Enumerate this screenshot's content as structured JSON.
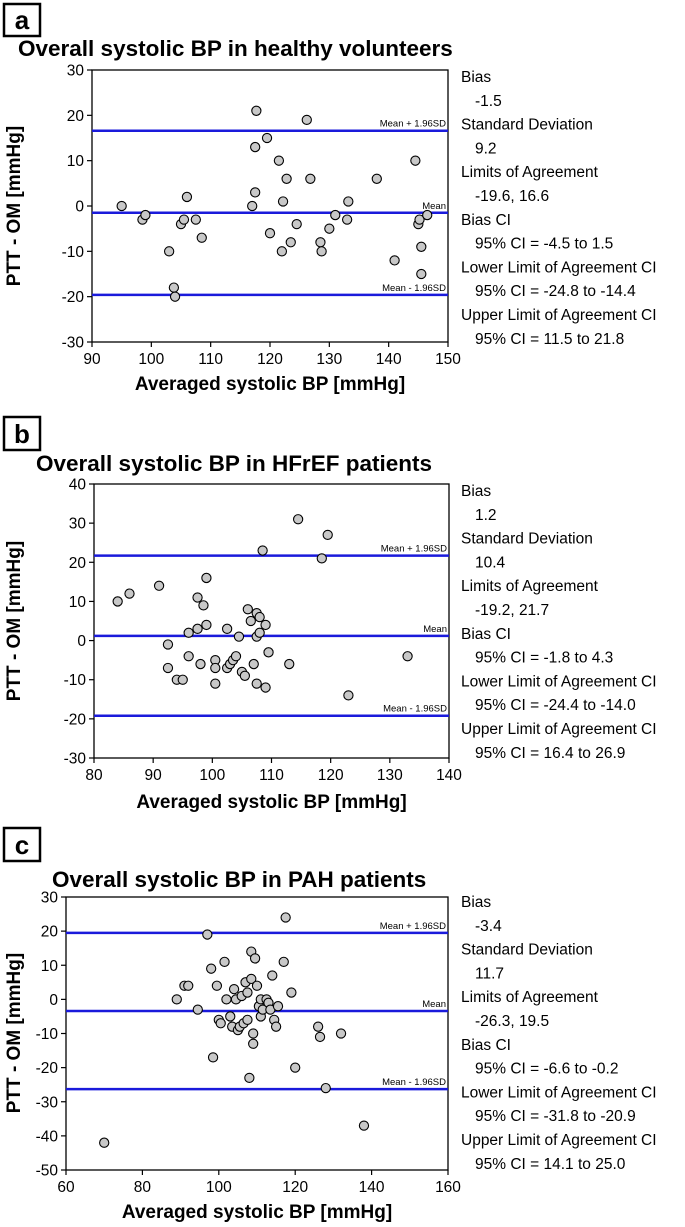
{
  "colors": {
    "mean_line": "#1a1adb",
    "point_fill": "#c8c8c8",
    "point_stroke": "#000000"
  },
  "chart_data": [
    {
      "type": "scatter",
      "panel_label": "a",
      "title": "Overall systolic BP in healthy volunteers",
      "xlabel": "Averaged systolic BP [mmHg]",
      "ylabel": "PTT - OM [mmHg]",
      "xlim": [
        90,
        150
      ],
      "ylim": [
        -30,
        30
      ],
      "xticks": [
        90,
        100,
        110,
        120,
        130,
        140,
        150
      ],
      "yticks": [
        -30,
        -20,
        -10,
        0,
        10,
        20,
        30
      ],
      "grid": false,
      "hlines": [
        {
          "name": "Mean + 1.96SD",
          "value": 16.6
        },
        {
          "name": "Mean",
          "value": -1.5
        },
        {
          "name": "Mean - 1.96SD",
          "value": -19.6
        }
      ],
      "points": [
        [
          95,
          0
        ],
        [
          98.5,
          -3
        ],
        [
          99,
          -2
        ],
        [
          103,
          -10
        ],
        [
          103.8,
          -18
        ],
        [
          104,
          -20
        ],
        [
          105,
          -4
        ],
        [
          105.5,
          -3
        ],
        [
          106,
          2
        ],
        [
          107.5,
          -3
        ],
        [
          108.5,
          -7
        ],
        [
          117,
          0
        ],
        [
          117.5,
          13
        ],
        [
          117.5,
          3
        ],
        [
          117.7,
          21
        ],
        [
          119.5,
          15
        ],
        [
          120,
          -6
        ],
        [
          121.5,
          10
        ],
        [
          122,
          -10
        ],
        [
          122.2,
          1
        ],
        [
          122.8,
          6
        ],
        [
          123.5,
          -8
        ],
        [
          124.5,
          -4
        ],
        [
          126.2,
          19
        ],
        [
          126.8,
          6
        ],
        [
          128.5,
          -8
        ],
        [
          128.7,
          -10
        ],
        [
          130,
          -5
        ],
        [
          131,
          -2
        ],
        [
          133,
          -3
        ],
        [
          133.2,
          1
        ],
        [
          138,
          6
        ],
        [
          141,
          -12
        ],
        [
          144.5,
          10
        ],
        [
          145,
          -4
        ],
        [
          145.2,
          -3
        ],
        [
          145.5,
          -9
        ],
        [
          145.5,
          -15
        ],
        [
          146.5,
          -2
        ]
      ],
      "stats": [
        {
          "label": "Bias",
          "value": "-1.5"
        },
        {
          "label": "Standard Deviation",
          "value": "9.2"
        },
        {
          "label": "Limits of Agreement",
          "value": "-19.6, 16.6"
        },
        {
          "label": "Bias CI",
          "value": "95% CI = -4.5 to 1.5"
        },
        {
          "label": "Lower Limit of Agreement CI",
          "value": "95% CI = -24.8 to -14.4"
        },
        {
          "label": "Upper Limit of Agreement CI",
          "value": "95% CI = 11.5 to 21.8"
        }
      ]
    },
    {
      "type": "scatter",
      "panel_label": "b",
      "title": "Overall systolic BP in HFrEF patients",
      "xlabel": "Averaged systolic BP [mmHg]",
      "ylabel": "PTT - OM [mmHg]",
      "xlim": [
        80,
        140
      ],
      "ylim": [
        -30,
        40
      ],
      "xticks": [
        80,
        90,
        100,
        110,
        120,
        130,
        140
      ],
      "yticks": [
        -30,
        -20,
        -10,
        0,
        10,
        20,
        30,
        40
      ],
      "grid": false,
      "hlines": [
        {
          "name": "Mean + 1.96SD",
          "value": 21.7
        },
        {
          "name": "Mean",
          "value": 1.2
        },
        {
          "name": "Mean - 1.96SD",
          "value": -19.2
        }
      ],
      "points": [
        [
          84,
          10
        ],
        [
          86,
          12
        ],
        [
          91,
          14
        ],
        [
          92.5,
          -1
        ],
        [
          92.5,
          -7
        ],
        [
          94,
          -10
        ],
        [
          95,
          -10
        ],
        [
          96,
          2
        ],
        [
          96,
          -4
        ],
        [
          97.5,
          3
        ],
        [
          97.5,
          11
        ],
        [
          98,
          -6
        ],
        [
          98.5,
          9
        ],
        [
          99,
          16
        ],
        [
          99,
          4
        ],
        [
          100.5,
          -5
        ],
        [
          100.5,
          -7
        ],
        [
          100.5,
          -11
        ],
        [
          102.5,
          3
        ],
        [
          102.5,
          -7
        ],
        [
          103,
          -6
        ],
        [
          103.5,
          -5
        ],
        [
          104,
          -4
        ],
        [
          104.5,
          1
        ],
        [
          105,
          -8
        ],
        [
          105.5,
          -9
        ],
        [
          106,
          8
        ],
        [
          106.5,
          5
        ],
        [
          107,
          -6
        ],
        [
          107.5,
          7
        ],
        [
          107.5,
          1
        ],
        [
          107.5,
          -11
        ],
        [
          108,
          2
        ],
        [
          108,
          6
        ],
        [
          108.5,
          23
        ],
        [
          109,
          -12
        ],
        [
          109,
          4
        ],
        [
          109.5,
          -3
        ],
        [
          113,
          -6
        ],
        [
          114.5,
          31
        ],
        [
          118.5,
          21
        ],
        [
          119.5,
          27
        ],
        [
          123,
          -14
        ],
        [
          133,
          -4
        ]
      ],
      "stats": [
        {
          "label": "Bias",
          "value": "1.2"
        },
        {
          "label": "Standard Deviation",
          "value": "10.4"
        },
        {
          "label": "Limits of Agreement",
          "value": "-19.2, 21.7"
        },
        {
          "label": "Bias CI",
          "value": "95% CI = -1.8 to 4.3"
        },
        {
          "label": "Lower Limit of Agreement CI",
          "value": "95% CI = -24.4 to -14.0"
        },
        {
          "label": "Upper Limit of Agreement CI",
          "value": "95% CI = 16.4 to 26.9"
        }
      ]
    },
    {
      "type": "scatter",
      "panel_label": "c",
      "title": "Overall systolic BP in PAH patients",
      "xlabel": "Averaged systolic BP [mmHg]",
      "ylabel": "PTT - OM [mmHg]",
      "xlim": [
        60,
        160
      ],
      "ylim": [
        -50,
        30
      ],
      "xticks": [
        60,
        80,
        100,
        120,
        140,
        160
      ],
      "yticks": [
        -50,
        -40,
        -30,
        -20,
        -10,
        0,
        10,
        20,
        30
      ],
      "grid": false,
      "hlines": [
        {
          "name": "Mean + 1.96SD",
          "value": 19.5
        },
        {
          "name": "Mean",
          "value": -3.4
        },
        {
          "name": "Mean - 1.96SD",
          "value": -26.3
        }
      ],
      "points": [
        [
          70,
          -42
        ],
        [
          89,
          0
        ],
        [
          91,
          4
        ],
        [
          92,
          4
        ],
        [
          94.5,
          -3
        ],
        [
          97,
          19
        ],
        [
          98,
          9
        ],
        [
          98.5,
          -17
        ],
        [
          99.5,
          4
        ],
        [
          100,
          -6
        ],
        [
          100.5,
          -7
        ],
        [
          101.5,
          11
        ],
        [
          102,
          0
        ],
        [
          103,
          -5
        ],
        [
          103.5,
          -8
        ],
        [
          104,
          3
        ],
        [
          104.5,
          0
        ],
        [
          105,
          -9
        ],
        [
          105.5,
          -8
        ],
        [
          106,
          1
        ],
        [
          106.5,
          -7
        ],
        [
          107,
          5
        ],
        [
          107.5,
          -6
        ],
        [
          107.5,
          2
        ],
        [
          108,
          -23
        ],
        [
          108.5,
          14
        ],
        [
          108.5,
          6
        ],
        [
          109,
          -10
        ],
        [
          109,
          -13
        ],
        [
          109.5,
          12
        ],
        [
          110,
          4
        ],
        [
          110.5,
          -2
        ],
        [
          111,
          0
        ],
        [
          111,
          -5
        ],
        [
          111.5,
          -3
        ],
        [
          112.5,
          0
        ],
        [
          113,
          -1
        ],
        [
          113.5,
          -3
        ],
        [
          114,
          7
        ],
        [
          114.5,
          -6
        ],
        [
          115,
          -8
        ],
        [
          115.5,
          -2
        ],
        [
          117,
          11
        ],
        [
          117.5,
          24
        ],
        [
          119,
          2
        ],
        [
          120,
          -20
        ],
        [
          126,
          -8
        ],
        [
          126.5,
          -11
        ],
        [
          128,
          -26
        ],
        [
          132,
          -10
        ],
        [
          138,
          -37
        ]
      ],
      "stats": [
        {
          "label": "Bias",
          "value": "-3.4"
        },
        {
          "label": "Standard Deviation",
          "value": "11.7"
        },
        {
          "label": "Limits of Agreement",
          "value": "-26.3, 19.5"
        },
        {
          "label": "Bias CI",
          "value": "95% CI = -6.6 to -0.2"
        },
        {
          "label": "Lower Limit of Agreement CI",
          "value": "95% CI = -31.8 to -20.9"
        },
        {
          "label": "Upper Limit of Agreement CI",
          "value": "95% CI = 14.1 to 25.0"
        }
      ]
    }
  ]
}
